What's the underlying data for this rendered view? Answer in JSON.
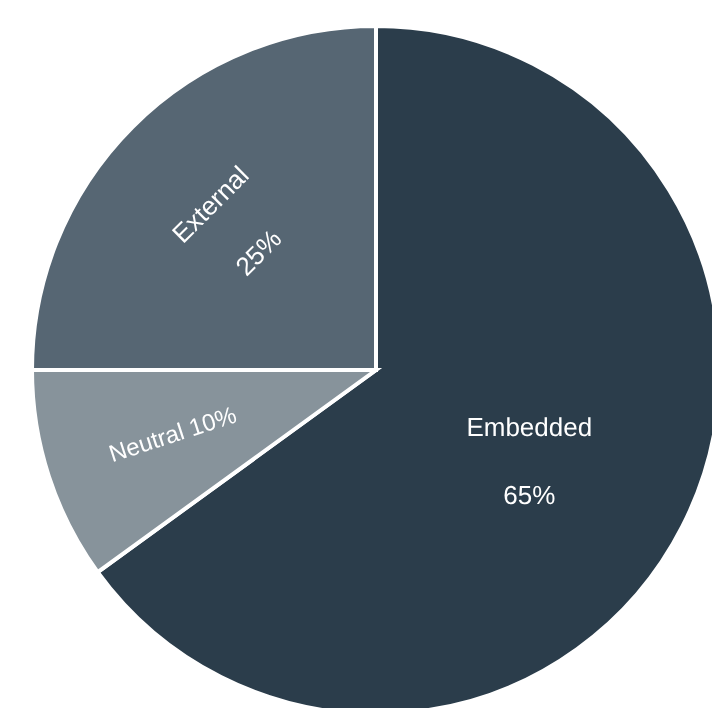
{
  "chart_data": {
    "type": "pie",
    "categories": [
      "Embedded",
      "Neutral",
      "External"
    ],
    "values": [
      65,
      10,
      25
    ],
    "value_labels": [
      "65%",
      "10%",
      "25%"
    ],
    "colors": [
      "#2b3d4b",
      "#87939b",
      "#566673"
    ]
  }
}
